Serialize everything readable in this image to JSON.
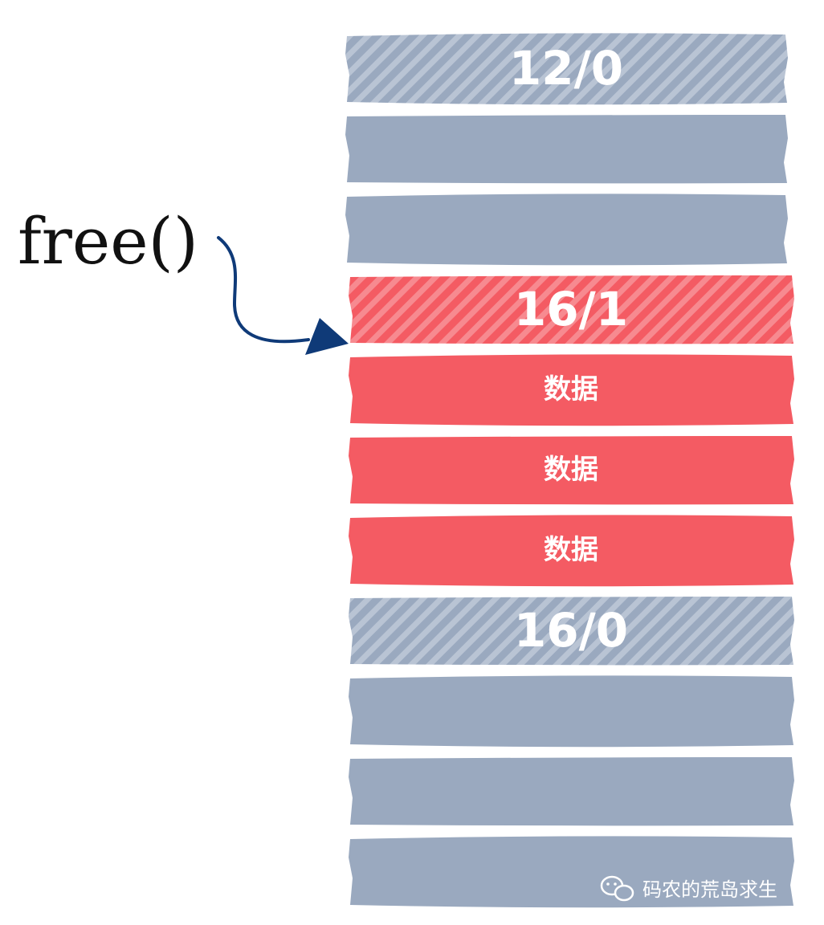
{
  "call": {
    "label": "free()"
  },
  "blocks": [
    {
      "kind": "header",
      "state": "free",
      "label": "12/0"
    },
    {
      "kind": "body",
      "state": "free",
      "label": ""
    },
    {
      "kind": "body",
      "state": "free",
      "label": ""
    },
    {
      "kind": "header",
      "state": "allocated",
      "label": "16/1"
    },
    {
      "kind": "body",
      "state": "allocated",
      "label": "数据"
    },
    {
      "kind": "body",
      "state": "allocated",
      "label": "数据"
    },
    {
      "kind": "body",
      "state": "allocated",
      "label": "数据"
    },
    {
      "kind": "header",
      "state": "free",
      "label": "16/0"
    },
    {
      "kind": "body",
      "state": "free",
      "label": ""
    },
    {
      "kind": "body",
      "state": "free",
      "label": ""
    },
    {
      "kind": "body",
      "state": "free",
      "label": ""
    }
  ],
  "colors": {
    "free": "#9aa9bf",
    "free_hatch": "#b9c4d4",
    "allocated": "#f45b63",
    "allocated_hatch": "#f78a90",
    "arrow": "#0f3a78"
  },
  "watermark": {
    "icon": "wechat-icon",
    "text": "码农的荒岛求生"
  }
}
